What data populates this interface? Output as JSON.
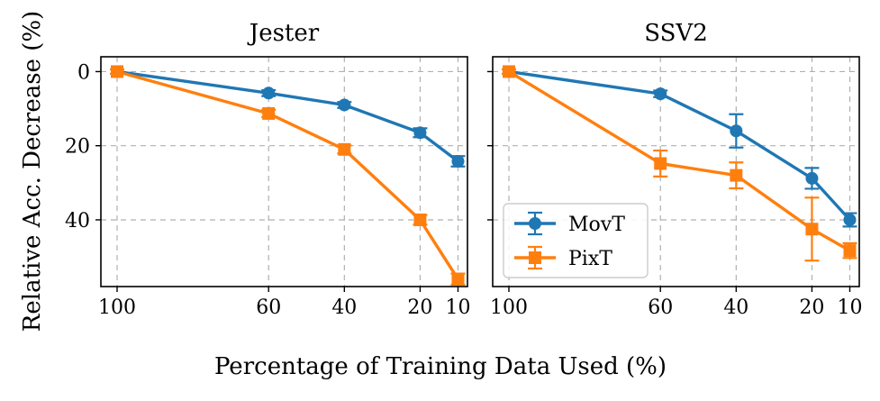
{
  "figure": {
    "xlabel": "Percentage of Training Data Used (%)",
    "ylabel": "Relative Acc. Decrease (%)"
  },
  "colors": {
    "MovT": "#1f77b4",
    "PixT": "#ff7f0e"
  },
  "chart_data": [
    {
      "type": "line",
      "title": "Jester",
      "x": [
        100,
        60,
        40,
        20,
        10
      ],
      "xticks": [
        "100",
        "60",
        "40",
        "20",
        "10"
      ],
      "yticks": [
        "0",
        "20",
        "40"
      ],
      "ylim": [
        58,
        -4
      ],
      "grid": true,
      "series": [
        {
          "name": "MovT",
          "marker": "circle",
          "values": [
            0,
            5.8,
            9.0,
            16.5,
            24.2
          ],
          "err": [
            0.6,
            0.8,
            0.8,
            1.2,
            1.4
          ]
        },
        {
          "name": "PixT",
          "marker": "square",
          "values": [
            0,
            11.3,
            21.0,
            40.0,
            56.0
          ],
          "err": [
            0.6,
            1.0,
            1.1,
            1.3,
            1.5
          ]
        }
      ]
    },
    {
      "type": "line",
      "title": "SSV2",
      "x": [
        100,
        60,
        40,
        20,
        10
      ],
      "xticks": [
        "100",
        "60",
        "40",
        "20",
        "10"
      ],
      "yticks": [
        "0",
        "20",
        "40"
      ],
      "ylim": [
        58,
        -4
      ],
      "grid": true,
      "legend": "lower-left",
      "series": [
        {
          "name": "MovT",
          "marker": "circle",
          "values": [
            0,
            6.0,
            16.0,
            28.8,
            40.0
          ],
          "err": [
            0.6,
            0.9,
            4.5,
            2.8,
            1.8
          ]
        },
        {
          "name": "PixT",
          "marker": "square",
          "values": [
            0,
            24.8,
            28.0,
            42.5,
            48.3
          ],
          "err": [
            0.6,
            3.5,
            3.5,
            8.5,
            2.0
          ]
        }
      ]
    }
  ]
}
